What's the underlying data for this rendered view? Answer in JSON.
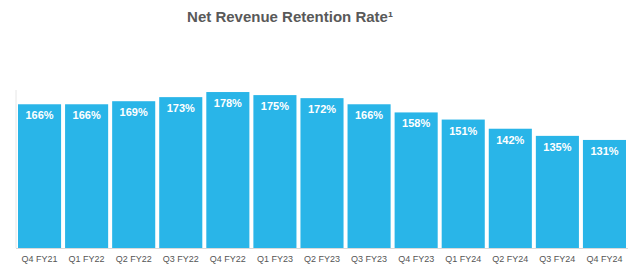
{
  "chart_data": {
    "type": "bar",
    "title": "Net Revenue Retention Rate¹",
    "categories": [
      "Q4 FY21",
      "Q1 FY22",
      "Q2 FY22",
      "Q3 FY22",
      "Q4 FY22",
      "Q1 FY23",
      "Q2 FY23",
      "Q3 FY23",
      "Q4 FY23",
      "Q1 FY24",
      "Q2 FY24",
      "Q3 FY24",
      "Q4 FY24"
    ],
    "values": [
      166,
      166,
      169,
      173,
      178,
      175,
      172,
      166,
      158,
      151,
      142,
      135,
      131
    ],
    "value_labels": [
      "166%",
      "166%",
      "169%",
      "173%",
      "178%",
      "175%",
      "172%",
      "166%",
      "158%",
      "151%",
      "142%",
      "135%",
      "131%"
    ],
    "color": "#29b5e8",
    "ylim": [
      25,
      180
    ],
    "grid": false,
    "data_labels": true,
    "tick_labels": "x"
  }
}
